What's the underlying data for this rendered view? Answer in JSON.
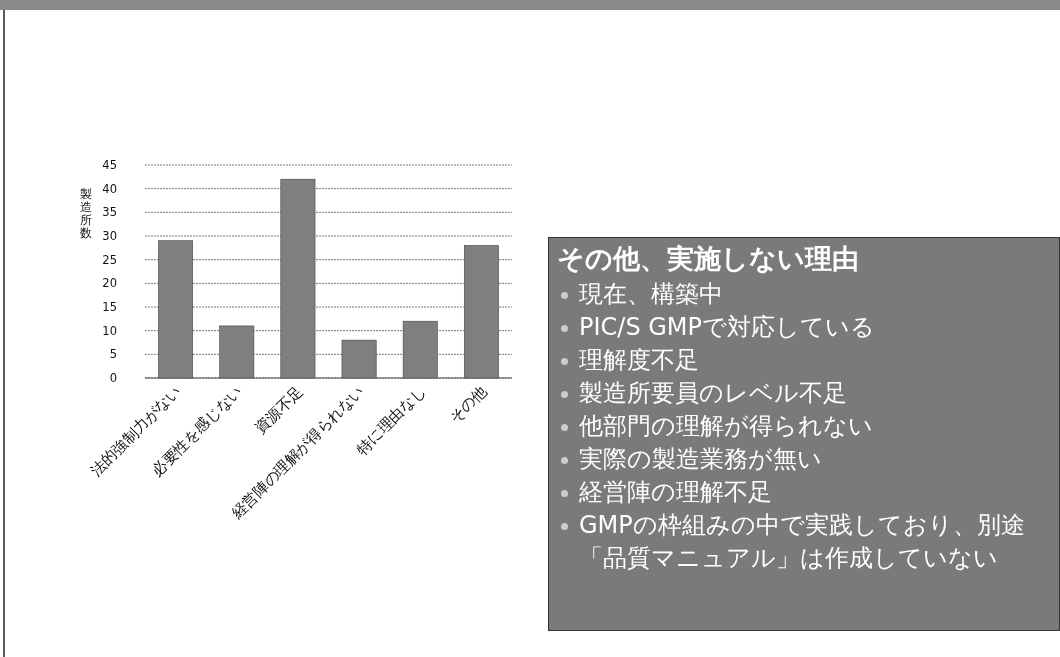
{
  "chart_data": {
    "type": "bar",
    "ylabel": "製造所数",
    "categories": [
      "法的強制力がない",
      "必要性を感じない",
      "資源不足",
      "経営陣の理解が得られない",
      "特に理由なし",
      "その他"
    ],
    "values": [
      29,
      11,
      42,
      8,
      12,
      28
    ],
    "color": "#7f7f7f",
    "ylim": [
      0,
      45
    ],
    "yticks": [
      0,
      5,
      10,
      15,
      20,
      25,
      30,
      35,
      40,
      45
    ],
    "grid": "y",
    "annotations": [
      "その他、実施しない理由",
      "現在、構築中",
      "PIC/S GMPで対応している",
      "理解度不足",
      "製造所要員のレベル不足",
      "他部門の理解が得られない",
      "実際の製造業務が無い",
      "経営陣の理解不足",
      "GMPの枠組みの中で実践しており、別途「品質マニュアル」は作成していない"
    ]
  }
}
